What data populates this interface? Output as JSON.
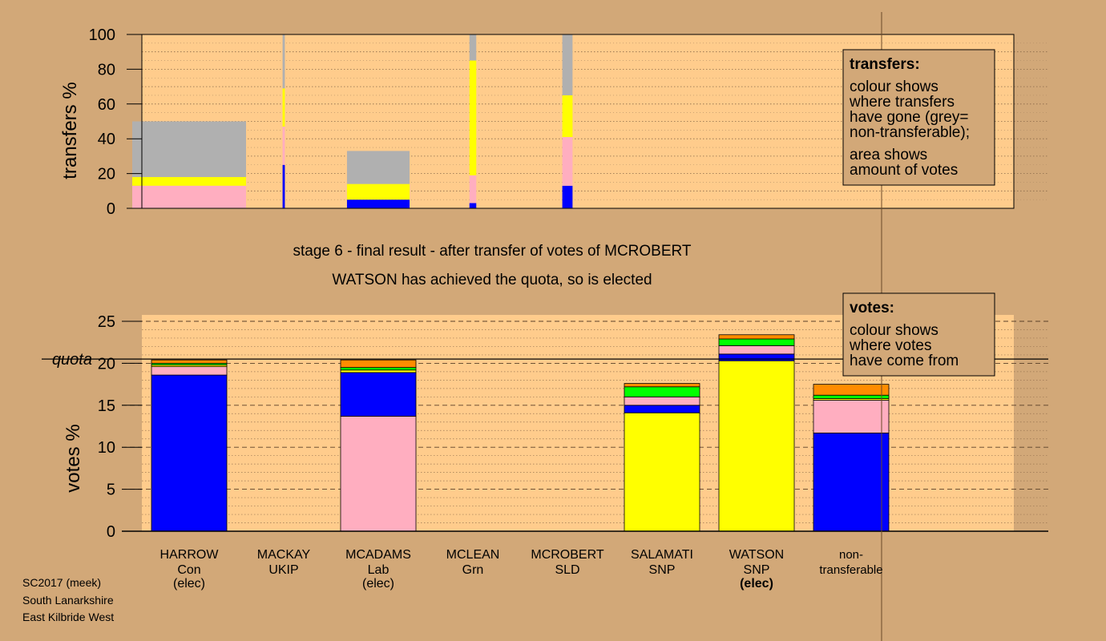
{
  "colors": {
    "background": "#d2a878",
    "plot_area": "#ffcc8c",
    "Con": "#0000ff",
    "Lab": "#ffaec0",
    "SNP": "#ffff00",
    "Grn": "#00ff00",
    "SLD": "#ff8c00",
    "UKIP": "#a020f0",
    "non_transferable": "#b0b0b0"
  },
  "stage_title": "stage 6 - final result - after transfer of votes of MCROBERT",
  "stage_subtitle": "WATSON has achieved the quota, so is elected",
  "footer": [
    "SC2017 (meek)",
    "South Lanarkshire",
    "East Kilbride West"
  ],
  "transfers_legend": {
    "heading": "transfers:",
    "lines1": [
      "colour shows",
      "where transfers",
      "have gone (grey=",
      "non-transferable);"
    ],
    "lines2": [
      "area shows",
      "amount of votes"
    ]
  },
  "votes_legend": {
    "heading": "votes:",
    "lines": [
      "colour shows",
      "where votes",
      "have come from"
    ]
  },
  "candidates": [
    {
      "name": "HARROW",
      "party": "Con",
      "status": "(elec)"
    },
    {
      "name": "MACKAY",
      "party": "UKIP",
      "status": ""
    },
    {
      "name": "MCADAMS",
      "party": "Lab",
      "status": "(elec)"
    },
    {
      "name": "MCLEAN",
      "party": "Grn",
      "status": ""
    },
    {
      "name": "MCROBERT",
      "party": "SLD",
      "status": ""
    },
    {
      "name": "SALAMATI",
      "party": "SNP",
      "status": ""
    },
    {
      "name": "WATSON",
      "party": "SNP",
      "status": "(elec)"
    },
    {
      "name": "non-",
      "party": "transferable",
      "status": ""
    }
  ],
  "chart_data": [
    {
      "type": "bar",
      "stacked": true,
      "ylabel": "transfers %",
      "ylim": [
        0,
        100
      ],
      "yticks": [
        0,
        20,
        40,
        60,
        80,
        100
      ],
      "grid": "dotted",
      "transfers": [
        {
          "source": "HARROW",
          "width_share": 1.0,
          "segments": [
            {
              "party": "Lab",
              "value": 13
            },
            {
              "party": "SNP",
              "value": 5
            },
            {
              "party": "non_transferable",
              "value": 32
            }
          ]
        },
        {
          "source": "MACKAY",
          "width_share": 0.02,
          "segments": [
            {
              "party": "Con",
              "value": 25
            },
            {
              "party": "Lab",
              "value": 22
            },
            {
              "party": "SNP",
              "value": 22
            },
            {
              "party": "non_transferable",
              "value": 31
            }
          ]
        },
        {
          "source": "MCADAMS",
          "width_share": 0.55,
          "segments": [
            {
              "party": "Con",
              "value": 5
            },
            {
              "party": "SNP",
              "value": 9
            },
            {
              "party": "non_transferable",
              "value": 19
            }
          ]
        },
        {
          "source": "MCLEAN",
          "width_share": 0.06,
          "segments": [
            {
              "party": "Con",
              "value": 3
            },
            {
              "party": "Lab",
              "value": 16
            },
            {
              "party": "SNP",
              "value": 66
            },
            {
              "party": "non_transferable",
              "value": 15
            }
          ]
        },
        {
          "source": "MCROBERT",
          "width_share": 0.09,
          "segments": [
            {
              "party": "Con",
              "value": 13
            },
            {
              "party": "Lab",
              "value": 28
            },
            {
              "party": "SNP",
              "value": 24
            },
            {
              "party": "non_transferable",
              "value": 35
            }
          ]
        }
      ]
    },
    {
      "type": "bar",
      "stacked": true,
      "ylabel": "votes %",
      "ylim": [
        0,
        25
      ],
      "yticks": [
        0,
        5,
        10,
        15,
        20,
        25
      ],
      "quota": 20.5,
      "quota_label": "quota",
      "grid": "dashed",
      "votes": [
        {
          "candidate": "HARROW",
          "segments": [
            {
              "party": "Con",
              "value": 18.6
            },
            {
              "party": "Lab",
              "value": 1.0
            },
            {
              "party": "SNP",
              "value": 0.2
            },
            {
              "party": "Grn",
              "value": 0.2
            },
            {
              "party": "SLD",
              "value": 0.4
            }
          ]
        },
        {
          "candidate": "MACKAY",
          "segments": []
        },
        {
          "candidate": "MCADAMS",
          "segments": [
            {
              "party": "Lab",
              "value": 13.7
            },
            {
              "party": "Con",
              "value": 5.2
            },
            {
              "party": "SNP",
              "value": 0.3
            },
            {
              "party": "Grn",
              "value": 0.3
            },
            {
              "party": "SLD",
              "value": 0.9
            }
          ]
        },
        {
          "candidate": "MCLEAN",
          "segments": []
        },
        {
          "candidate": "MCROBERT",
          "segments": []
        },
        {
          "candidate": "SALAMATI",
          "segments": [
            {
              "party": "SNP",
              "value": 14.1
            },
            {
              "party": "Con",
              "value": 0.9
            },
            {
              "party": "Lab",
              "value": 1.0
            },
            {
              "party": "Grn",
              "value": 1.2
            },
            {
              "party": "SLD",
              "value": 0.4
            }
          ]
        },
        {
          "candidate": "WATSON",
          "segments": [
            {
              "party": "SNP",
              "value": 20.3
            },
            {
              "party": "Con",
              "value": 0.8
            },
            {
              "party": "Lab",
              "value": 1.0
            },
            {
              "party": "Grn",
              "value": 0.8
            },
            {
              "party": "SLD",
              "value": 0.5
            }
          ]
        },
        {
          "candidate": "non-transferable",
          "segments": [
            {
              "party": "Con",
              "value": 11.7
            },
            {
              "party": "Lab",
              "value": 3.9
            },
            {
              "party": "SNP",
              "value": 0.2
            },
            {
              "party": "Grn",
              "value": 0.4
            },
            {
              "party": "SLD",
              "value": 1.3
            }
          ]
        }
      ]
    }
  ]
}
